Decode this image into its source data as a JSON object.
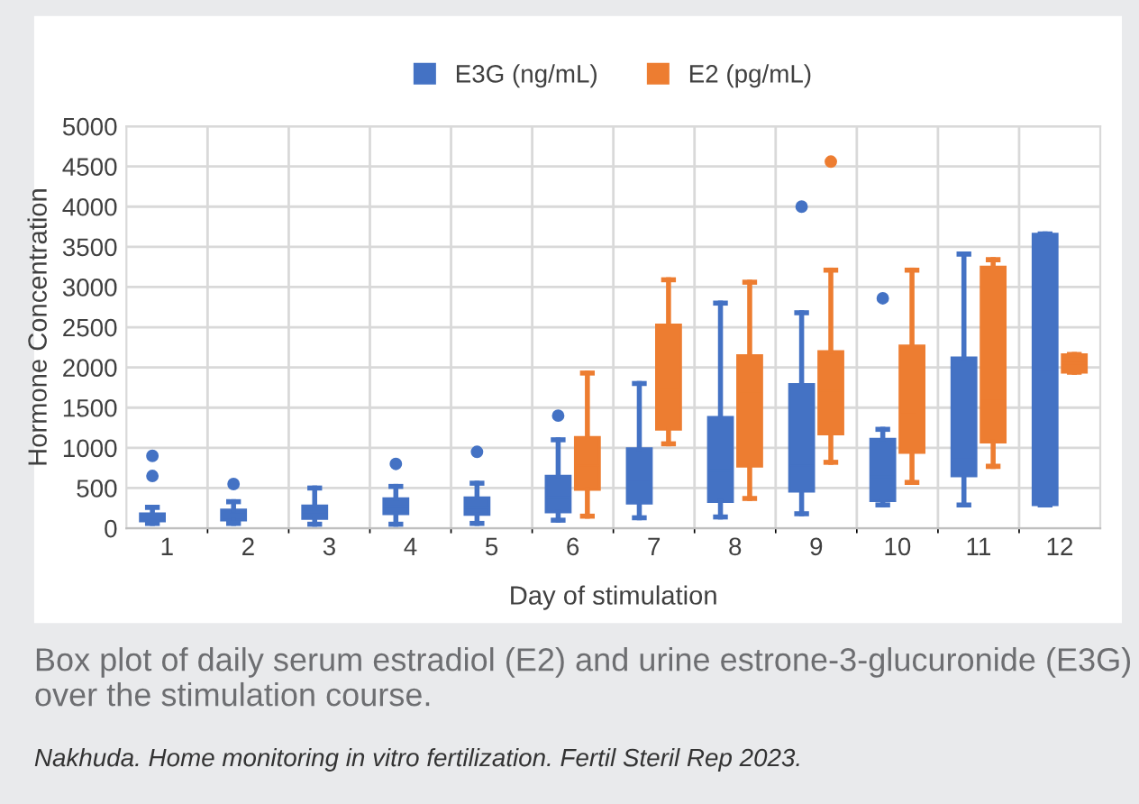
{
  "chart_data": {
    "type": "box",
    "xlabel": "Day of stimulation",
    "ylabel": "Hormone Concentration",
    "categories": [
      "1",
      "2",
      "3",
      "4",
      "5",
      "6",
      "7",
      "8",
      "9",
      "10",
      "11",
      "12"
    ],
    "ylim": [
      0,
      5000
    ],
    "yticks": [
      0,
      500,
      1000,
      1500,
      2000,
      2500,
      3000,
      3500,
      4000,
      4500,
      5000
    ],
    "grid": true,
    "legend": "top",
    "series": [
      {
        "name": "E3G (ng/mL)",
        "color": "#4472c4",
        "boxes": [
          {
            "low": 60,
            "q1": 90,
            "median": 140,
            "q3": 180,
            "high": 260,
            "outliers": [
              650,
              900
            ]
          },
          {
            "low": 60,
            "q1": 100,
            "median": 170,
            "q3": 230,
            "high": 330,
            "outliers": [
              550
            ]
          },
          {
            "low": 50,
            "q1": 120,
            "median": 200,
            "q3": 280,
            "high": 500
          },
          {
            "low": 50,
            "q1": 180,
            "median": 270,
            "q3": 370,
            "high": 520,
            "outliers": [
              800
            ]
          },
          {
            "low": 60,
            "q1": 170,
            "median": 260,
            "q3": 380,
            "high": 560,
            "outliers": [
              950
            ]
          },
          {
            "low": 100,
            "q1": 200,
            "median": 380,
            "q3": 650,
            "high": 1100,
            "outliers": [
              1400
            ]
          },
          {
            "low": 130,
            "q1": 310,
            "median": 570,
            "q3": 990,
            "high": 1800
          },
          {
            "low": 140,
            "q1": 330,
            "median": 720,
            "q3": 1380,
            "high": 2800
          },
          {
            "low": 180,
            "q1": 460,
            "median": 780,
            "q3": 1790,
            "high": 2680,
            "outliers": [
              4000
            ]
          },
          {
            "low": 290,
            "q1": 340,
            "median": 640,
            "q3": 1110,
            "high": 1230,
            "outliers": [
              2860
            ]
          },
          {
            "low": 290,
            "q1": 650,
            "median": 850,
            "q3": 2120,
            "high": 3410
          },
          {
            "low": 290,
            "q1": 290,
            "median": 1970,
            "q3": 3660,
            "high": 3660
          }
        ]
      },
      {
        "name": "E2 (pg/mL)",
        "color": "#ed7d31",
        "boxes": [
          null,
          null,
          null,
          null,
          null,
          {
            "low": 150,
            "q1": 480,
            "median": 780,
            "q3": 1130,
            "high": 1930
          },
          {
            "low": 1050,
            "q1": 1230,
            "median": 1720,
            "q3": 2530,
            "high": 3090
          },
          {
            "low": 370,
            "q1": 770,
            "median": 1700,
            "q3": 2150,
            "high": 3060
          },
          {
            "low": 820,
            "q1": 1170,
            "median": 1710,
            "q3": 2200,
            "high": 3210,
            "outliers": [
              4560
            ]
          },
          {
            "low": 570,
            "q1": 940,
            "median": 1410,
            "q3": 2270,
            "high": 3210
          },
          {
            "low": 770,
            "q1": 1070,
            "median": 1610,
            "q3": 3250,
            "high": 3340
          },
          {
            "low": 1940,
            "q1": 1940,
            "median": 2050,
            "q3": 2160,
            "high": 2160
          }
        ]
      }
    ],
    "annotations": [
      "Box plot of daily serum estradiol (E2) and urine estrone-3-glucuronide (E3G) over the stimulation course.",
      "Nakhuda. Home monitoring in vitro fertilization. Fertil Steril Rep 2023."
    ]
  }
}
